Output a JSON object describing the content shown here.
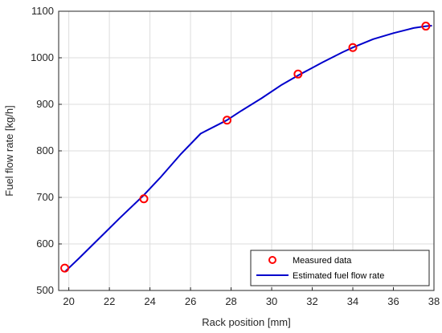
{
  "chart_data": {
    "type": "line",
    "title": "",
    "xlabel": "Rack position [mm]",
    "ylabel": "Fuel flow rate [kg/h]",
    "xlim": [
      19.5,
      38
    ],
    "ylim": [
      500,
      1100
    ],
    "xticks": [
      20,
      22,
      24,
      26,
      28,
      30,
      32,
      34,
      36,
      38
    ],
    "yticks": [
      500,
      600,
      700,
      800,
      900,
      1000,
      1100
    ],
    "grid": true,
    "legend_position": "bottom-right",
    "series": [
      {
        "name": "Measured data",
        "kind": "scatter",
        "marker": "circle-open",
        "color": "#ff0000",
        "x": [
          19.8,
          23.7,
          27.8,
          31.3,
          34.0,
          37.6
        ],
        "y": [
          548,
          697,
          866,
          965,
          1022,
          1068
        ]
      },
      {
        "name": "Estimated fuel flow rate",
        "kind": "line",
        "color": "#0000cc",
        "x": [
          19.8,
          20.5,
          21.5,
          22.5,
          23.7,
          24.5,
          25.5,
          26.5,
          27.8,
          28.5,
          29.5,
          30.5,
          31.3,
          32.5,
          33.5,
          34.0,
          35.0,
          36.0,
          37.0,
          37.6,
          37.9
        ],
        "y": [
          540,
          569,
          612,
          655,
          705,
          742,
          792,
          837,
          866,
          886,
          913,
          942,
          962,
          990,
          1012,
          1022,
          1040,
          1053,
          1064,
          1068,
          1069
        ]
      }
    ]
  }
}
